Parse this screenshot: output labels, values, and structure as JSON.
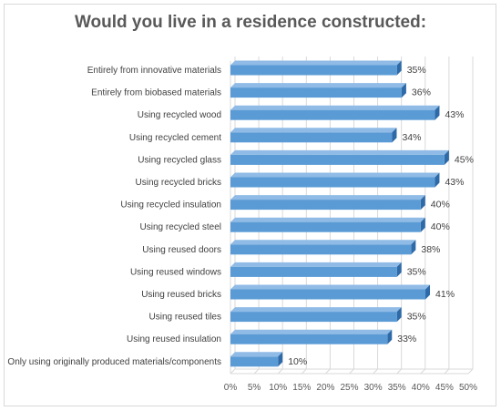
{
  "chart_data": {
    "type": "bar",
    "orientation": "horizontal",
    "style": "3d",
    "title": "Would you live in a residence constructed:",
    "categories": [
      "Entirely from innovative materials",
      "Entirely from biobased materials",
      "Using recycled wood",
      "Using recycled cement",
      "Using recycled glass",
      "Using recycled bricks",
      "Using recycled insulation",
      "Using recycled steel",
      "Using reused doors",
      "Using reused windows",
      "Using reused bricks",
      "Using reused tiles",
      "Using reused insulation",
      "Only using originally produced materials/components"
    ],
    "values": [
      35,
      36,
      43,
      34,
      45,
      43,
      40,
      40,
      38,
      35,
      41,
      35,
      33,
      10
    ],
    "value_labels": [
      "35%",
      "36%",
      "43%",
      "34%",
      "45%",
      "43%",
      "40%",
      "40%",
      "38%",
      "35%",
      "41%",
      "35%",
      "33%",
      "10%"
    ],
    "xlim": [
      0,
      50
    ],
    "x_ticks": [
      "0%",
      "5%",
      "10%",
      "15%",
      "20%",
      "25%",
      "30%",
      "35%",
      "40%",
      "45%",
      "50%"
    ],
    "grid": "vertical",
    "legend": "none",
    "colors": {
      "bar_front": "#5b9bd5",
      "bar_side": "#2e6aa8",
      "bar_top": "#8fbbe6",
      "grid": "#d9d9d9",
      "title": "#595959"
    }
  }
}
